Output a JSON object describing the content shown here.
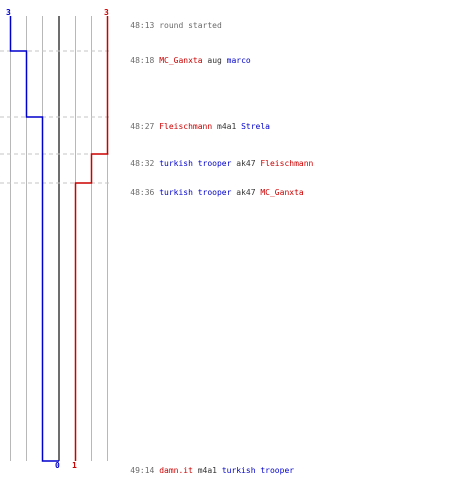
{
  "colors": {
    "red_team": "#cc0000",
    "blue_team": "#0000cc",
    "weapon": "#333333",
    "message": "#777777",
    "time": "#666666",
    "gridline": "#b8b8b8",
    "dashed": "#c4c4c4",
    "center_line": "#6d6d6d"
  },
  "scores": {
    "blue_start": "3",
    "red_start": "3",
    "blue_end": "0",
    "red_end": "1"
  },
  "events": [
    {
      "id": "round-start",
      "time": "48:13",
      "message": "round started"
    },
    {
      "id": "kill-1",
      "time": "48:18",
      "killer": "MC_Ganxta",
      "killer_team": "red",
      "weapon": "aug",
      "victim": "marco",
      "victim_team": "blue"
    },
    {
      "id": "kill-2",
      "time": "48:27",
      "killer": "Fleischmann",
      "killer_team": "red",
      "weapon": "m4a1",
      "victim": "Strela",
      "victim_team": "blue"
    },
    {
      "id": "kill-3",
      "time": "48:32",
      "killer": "turkish trooper",
      "killer_team": "blue",
      "weapon": "ak47",
      "victim": "Fleischmann",
      "victim_team": "red"
    },
    {
      "id": "kill-4",
      "time": "48:36",
      "killer": "turkish trooper",
      "killer_team": "blue",
      "weapon": "ak47",
      "victim": "MC_Ganxta",
      "victim_team": "red"
    },
    {
      "id": "kill-5",
      "time": "49:14",
      "killer": "damn.it",
      "killer_team": "red",
      "weapon": "m4a1",
      "victim": "turkish trooper",
      "victim_team": "blue"
    }
  ]
}
